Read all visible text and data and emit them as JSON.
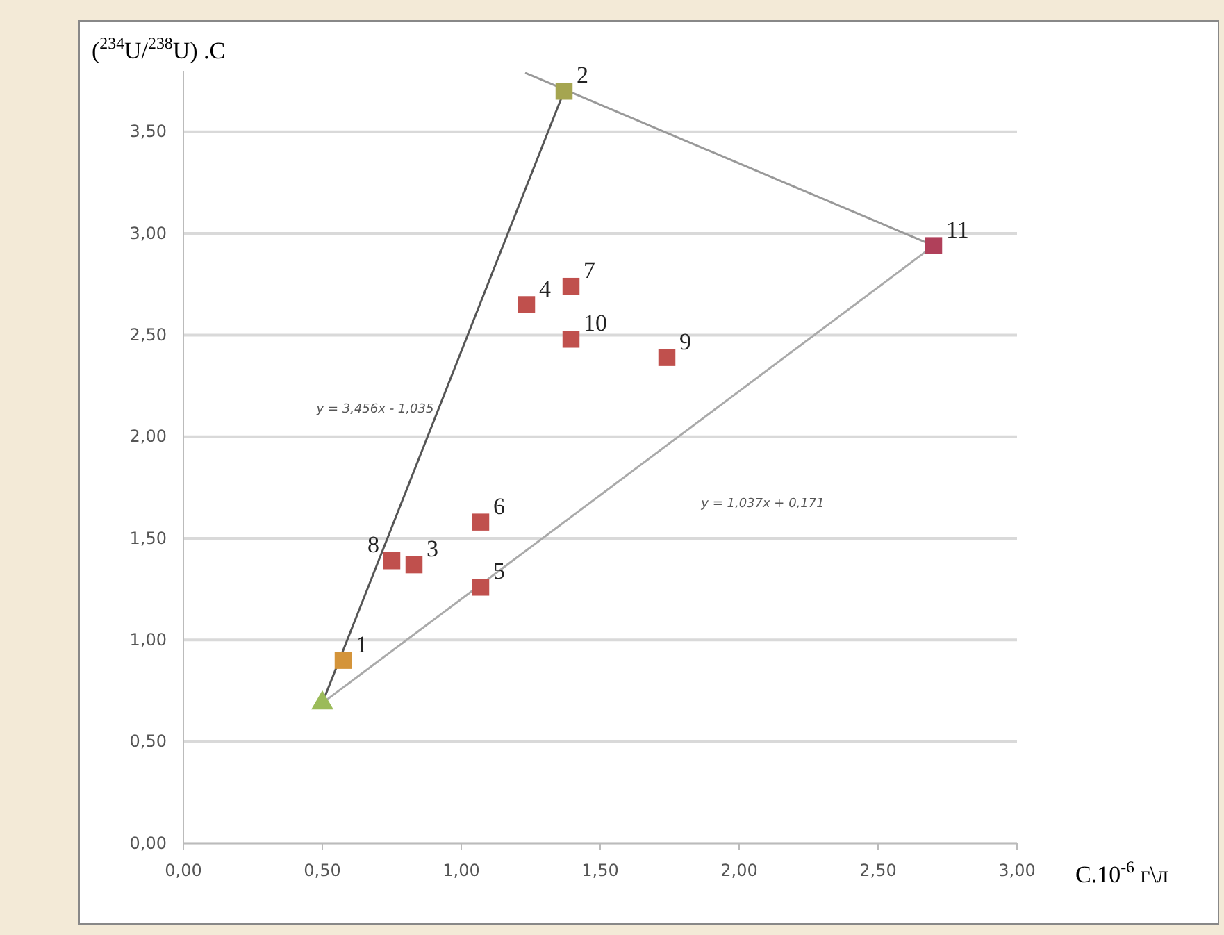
{
  "chart_data": {
    "type": "scatter",
    "xlabel": "C.10$^{-6}$ г\\л",
    "ylabel": "($^{234}$U/$^{238}$U) .C",
    "xlim": [
      0,
      3
    ],
    "ylim": [
      0,
      3.8
    ],
    "xticks": [
      {
        "value": 0,
        "label": "0,00"
      },
      {
        "value": 0.5,
        "label": "0,50"
      },
      {
        "value": 1,
        "label": "1,00"
      },
      {
        "value": 1.5,
        "label": "1,50"
      },
      {
        "value": 2,
        "label": "2,00"
      },
      {
        "value": 2.5,
        "label": "2,50"
      },
      {
        "value": 3,
        "label": "3,00"
      }
    ],
    "yticks": [
      {
        "value": 0,
        "label": "0,00"
      },
      {
        "value": 0.5,
        "label": "0,50"
      },
      {
        "value": 1,
        "label": "1,00"
      },
      {
        "value": 1.5,
        "label": "1,50"
      },
      {
        "value": 2,
        "label": "2,00"
      },
      {
        "value": 2.5,
        "label": "2,50"
      },
      {
        "value": 3,
        "label": "3,00"
      },
      {
        "value": 3.5,
        "label": "3,50"
      }
    ],
    "grid": "y",
    "series": [
      {
        "type": "line",
        "color": "#555555",
        "marker": "none",
        "line_style": "solid",
        "x": [
          0.5,
          1.37
        ],
        "values": [
          0.69,
          3.7
        ]
      },
      {
        "type": "line",
        "color": "#aaaaaa",
        "marker": "none",
        "line_style": "solid",
        "x": [
          0.5,
          2.7
        ],
        "values": [
          0.69,
          2.94
        ]
      },
      {
        "type": "line",
        "color": "#999999",
        "marker": "none",
        "line_style": "solid",
        "x": [
          1.23,
          2.7
        ],
        "values": [
          3.79,
          2.94
        ]
      },
      {
        "type": "scatter",
        "marker": "square",
        "colors": [
          "#d4943a",
          "#a5a550",
          "#c0504d",
          "#c0504d",
          "#c0504d",
          "#c0504d",
          "#c0504d",
          "#c0504d",
          "#c0504d",
          "#c0504d",
          "#b0405a"
        ],
        "x": [
          0.575,
          1.37,
          0.83,
          1.235,
          1.07,
          1.07,
          1.395,
          0.75,
          1.74,
          1.395,
          2.7
        ],
        "values": [
          0.9,
          3.7,
          1.37,
          2.65,
          1.26,
          1.58,
          2.74,
          1.39,
          2.39,
          2.48,
          2.94
        ]
      },
      {
        "type": "scatter",
        "marker": "triangle",
        "color": "#9bbb59",
        "x": [
          0.5
        ],
        "values": [
          0.69
        ]
      }
    ],
    "annotations": [
      {
        "text": "1",
        "x": 0.575,
        "y": 0.9
      },
      {
        "text": "2",
        "x": 1.37,
        "y": 3.7
      },
      {
        "text": "3",
        "x": 0.83,
        "y": 1.37
      },
      {
        "text": "4",
        "x": 1.235,
        "y": 2.65
      },
      {
        "text": "5",
        "x": 1.07,
        "y": 1.26
      },
      {
        "text": "6",
        "x": 1.07,
        "y": 1.58
      },
      {
        "text": "7",
        "x": 1.395,
        "y": 2.74
      },
      {
        "text": "8",
        "x": 0.75,
        "y": 1.39
      },
      {
        "text": "9",
        "x": 1.74,
        "y": 2.39
      },
      {
        "text": "10",
        "x": 1.395,
        "y": 2.48
      },
      {
        "text": "11",
        "x": 2.7,
        "y": 2.94
      },
      "y = 3,456x - 1,035",
      "y = 1,037x + 0,171"
    ]
  }
}
